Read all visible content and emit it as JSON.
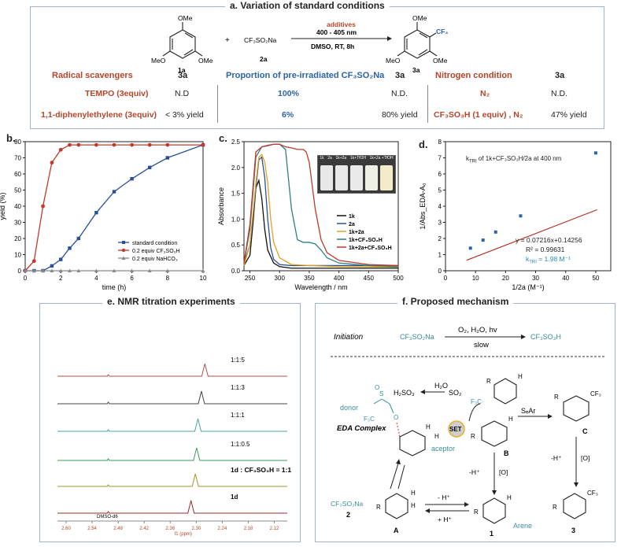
{
  "panel_a": {
    "title": "a. Variation of standard conditions",
    "scheme": {
      "reactant1_substituents": [
        "OMe",
        "MeO",
        "OMe"
      ],
      "reactant1_label": "1a",
      "plus": "+",
      "reagent": "CF₃SO₂Na",
      "reagent_label": "2a",
      "additives": "additives",
      "light": "400 - 405 nm",
      "conditions": "DMSO, RT, 8h",
      "product_substituents": [
        "OMe",
        "CF₃",
        "MeO",
        "OMe"
      ],
      "product_label": "3a"
    },
    "table": {
      "col1_header": "Radical scavengers",
      "col1_yield_header": "3a",
      "col2_header": "Proportion of pre-irradiated CF₃SO₂Na",
      "col2_yield_header": "3a",
      "col3_header": "Nitrogen condition",
      "col3_yield_header": "3a",
      "rows": [
        {
          "c1": "TEMPO (3equiv)",
          "y1": "N.D",
          "c2": "100%",
          "y2": "N.D.",
          "c3": "N₂",
          "y3": "N.D."
        },
        {
          "c1": "1,1-diphenylethylene (3equiv)",
          "y1": "< 3% yield",
          "c2": "6%",
          "y2": "80% yield",
          "c3": "CF₃SO₃H (1 equiv) , N₂",
          "y3": "47% yield"
        }
      ]
    }
  },
  "panel_b": {
    "label": "b.",
    "chart_data": {
      "type": "line",
      "xlabel": "time (h)",
      "ylabel": "yield (%)",
      "xlim": [
        0,
        10
      ],
      "ylim": [
        0,
        80
      ],
      "xticks": [
        0,
        2,
        4,
        6,
        8,
        10
      ],
      "yticks": [
        0,
        10,
        20,
        30,
        40,
        50,
        60,
        70,
        80
      ],
      "series": [
        {
          "name": "standard condition",
          "color": "#2a4f9a",
          "marker": "square",
          "x": [
            0,
            0.5,
            1,
            1.5,
            2,
            2.5,
            3,
            4,
            5,
            6,
            7,
            8,
            10
          ],
          "y": [
            0,
            0,
            0,
            3,
            7,
            14,
            20,
            36,
            49,
            57,
            64,
            70,
            78
          ]
        },
        {
          "name": "0.2 equiv CF₃SO₃H",
          "color": "#c0392b",
          "marker": "circle",
          "x": [
            0,
            0.5,
            1,
            1.5,
            2,
            2.5,
            3,
            4,
            5,
            6,
            7,
            8,
            10
          ],
          "y": [
            0,
            6,
            40,
            67,
            75,
            78,
            78,
            78,
            78,
            78,
            78,
            78,
            78
          ]
        },
        {
          "name": "0.2 equiv NaHCO₃",
          "color": "#8a8a8a",
          "marker": "triangle",
          "x": [
            0,
            0.5,
            1,
            1.5,
            2,
            2.5,
            3,
            4,
            5,
            6,
            7,
            8,
            10
          ],
          "y": [
            0,
            0,
            0,
            0,
            0,
            0,
            0,
            0,
            0,
            0,
            0,
            0,
            0
          ]
        }
      ],
      "legend": "bottom-right"
    }
  },
  "panel_c": {
    "label": "c.",
    "chart_data": {
      "type": "line",
      "xlabel": "Wavelength / nm",
      "ylabel": "Absorbance",
      "xlim": [
        240,
        500
      ],
      "ylim": [
        0,
        2.5
      ],
      "xticks": [
        250,
        300,
        350,
        400,
        450,
        500
      ],
      "yticks": [
        0.0,
        0.5,
        1.0,
        1.5,
        2.0,
        2.5
      ],
      "series": [
        {
          "name": "1k",
          "color": "#111111",
          "x": [
            240,
            250,
            255,
            260,
            265,
            270,
            275,
            280,
            290,
            300,
            320,
            350,
            400,
            500
          ],
          "y": [
            0.1,
            0.3,
            0.9,
            1.6,
            1.75,
            1.4,
            0.8,
            0.4,
            0.15,
            0.08,
            0.05,
            0.05,
            0.05,
            0.05
          ]
        },
        {
          "name": "2a",
          "color": "#2a4f9a",
          "x": [
            240,
            250,
            260,
            265,
            270,
            275,
            280,
            285,
            290,
            300,
            320,
            350,
            400,
            500
          ],
          "y": [
            0.15,
            0.5,
            1.6,
            2.15,
            2.2,
            1.8,
            1.0,
            0.45,
            0.22,
            0.12,
            0.1,
            0.1,
            0.1,
            0.1
          ]
        },
        {
          "name": "1k+2a",
          "color": "#e0a31a",
          "x": [
            240,
            250,
            260,
            265,
            270,
            275,
            280,
            285,
            290,
            300,
            320,
            350,
            400,
            500
          ],
          "y": [
            0.1,
            0.5,
            1.7,
            2.2,
            2.25,
            2.1,
            1.7,
            1.0,
            0.55,
            0.25,
            0.12,
            0.1,
            0.08,
            0.07
          ]
        },
        {
          "name": "1k+CF₃SO₃H",
          "color": "#2d7f86",
          "x": [
            240,
            250,
            260,
            270,
            280,
            290,
            300,
            310,
            320,
            330,
            340,
            350,
            360,
            370,
            380,
            400,
            450,
            500
          ],
          "y": [
            0.15,
            0.8,
            2.2,
            2.4,
            2.42,
            2.45,
            2.45,
            2.35,
            1.2,
            0.6,
            0.55,
            0.55,
            0.52,
            0.4,
            0.25,
            0.15,
            0.1,
            0.08
          ]
        },
        {
          "name": "1k+2a+CF₃SO₃H",
          "color": "#c0392b",
          "x": [
            240,
            250,
            260,
            270,
            280,
            290,
            300,
            310,
            320,
            330,
            340,
            345,
            350,
            360,
            370,
            380,
            400,
            450,
            500
          ],
          "y": [
            0.15,
            0.9,
            2.3,
            2.4,
            2.43,
            2.45,
            2.45,
            2.4,
            2.38,
            2.35,
            2.35,
            2.3,
            2.1,
            1.2,
            0.6,
            0.35,
            0.2,
            0.12,
            0.1
          ]
        }
      ],
      "legend": "bottom-right"
    },
    "inset_labels": [
      "1k",
      "2a",
      "1k+2a",
      "1k+TfOH",
      "1k+2a +TfOH"
    ]
  },
  "panel_d": {
    "label": "d.",
    "title_text": "k",
    "title_sub": "TRI",
    "title_rest": " of 1k+CF₃SO₃H/2a at 400 nm",
    "equation": "y = 0.07216x+0.14256",
    "r2": "R² = 0.99631",
    "k_label": "k",
    "k_sub": "TRI",
    "k_value": "= 1.98 M⁻¹",
    "chart_data": {
      "type": "scatter",
      "xlabel": "1/2a (M⁻¹)",
      "ylabel": "1/Abs_EDA-A₀",
      "xlim": [
        0,
        55
      ],
      "ylim": [
        0,
        8
      ],
      "xticks": [
        0,
        10,
        20,
        30,
        40,
        50
      ],
      "yticks": [
        0,
        1,
        2,
        3,
        4,
        5,
        6,
        7,
        8
      ],
      "points": {
        "x": [
          8.3,
          12.5,
          16.7,
          25,
          50
        ],
        "y": [
          1.4,
          1.9,
          2.4,
          3.4,
          7.3
        ]
      },
      "fit": {
        "slope": 0.07216,
        "intercept": 0.14256,
        "color": "#b03020"
      },
      "point_color": "#2a63a8"
    }
  },
  "panel_e": {
    "title": "e. NMR titration experiments",
    "traces": [
      {
        "label": "1:1:5",
        "color": "#b5504a"
      },
      {
        "label": "1:1:3",
        "color": "#444444"
      },
      {
        "label": "1:1:1",
        "color": "#4aa3a8"
      },
      {
        "label": "1:1:0.5",
        "color": "#3a9a5a"
      },
      {
        "label": "1d : CF₃SO₃H = 1:1",
        "color": "#9a9a2a"
      },
      {
        "label": "1d",
        "color": "#9a2a2a"
      }
    ],
    "solvent_label": "DMSO-d6",
    "xticks": [
      "2.60",
      "2.54",
      "2.48",
      "2.42",
      "2.36",
      "2.30",
      "2.24",
      "2.18",
      "2.12"
    ],
    "xlabel": "f1 (ppm)",
    "xtick_extra": "2.30"
  },
  "panel_f": {
    "title": "f. Proposed mechanism",
    "initiation_label": "Initiation",
    "initiation_reactant": "CF₃SO₂Na",
    "initiation_conditions": "O₂, H₂O, hv",
    "initiation_slow": "slow",
    "initiation_product": "CF₃SO₃H",
    "donor": "donor",
    "eda_complex": "EDA Complex",
    "aceptor": "aceptor",
    "h2so3": "H₂SO₃",
    "h2o": "H₂O",
    "so2": "SO₂",
    "set": "SET",
    "cf3_radical": "F₃C·",
    "sear": "SₑAr",
    "b_label": "B",
    "c_label": "C",
    "minus_h": "-H⁺",
    "oxid": "[O]",
    "cf3so2na": "CF₃SO₂Na",
    "num2": "2",
    "a_label": "A",
    "minus_hplus": "- H⁺",
    "plus_hplus": "+ H⁺",
    "arene": "Arene",
    "num1": "1",
    "num3": "3",
    "r": "R",
    "h": "H",
    "cf3": "CF₃"
  },
  "colors": {
    "frame": "#9fb3c8",
    "red": "#b5442a",
    "blue": "#2a63a8",
    "teal": "#3a8c9a"
  }
}
